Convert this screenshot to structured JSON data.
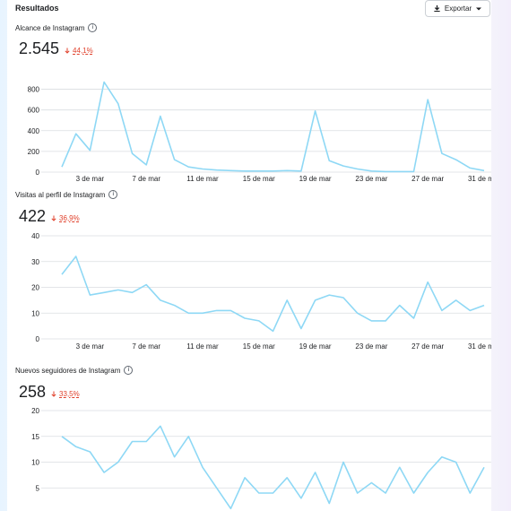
{
  "header": {
    "title": "Resultados",
    "export_label": "Exportar"
  },
  "colors": {
    "line": "#8ed8f5",
    "grid": "#dadde1",
    "decrease": "#e0402b"
  },
  "sections": [
    {
      "title": "Alcance de Instagram",
      "value": "2.545",
      "change": "44,1%"
    },
    {
      "title": "Visitas al perfil de Instagram",
      "value": "422",
      "change": "36,9%"
    },
    {
      "title": "Nuevos seguidores de Instagram",
      "value": "258",
      "change": "33,5%"
    }
  ],
  "chart_data": [
    {
      "type": "line",
      "x": [
        1,
        2,
        3,
        4,
        5,
        6,
        7,
        8,
        9,
        10,
        11,
        12,
        13,
        14,
        15,
        16,
        17,
        18,
        19,
        20,
        21,
        22,
        23,
        24,
        25,
        26,
        27,
        28,
        29,
        30,
        31
      ],
      "xticks": [
        "3 de mar",
        "7 de mar",
        "11 de mar",
        "15 de mar",
        "19 de mar",
        "23 de mar",
        "27 de mar",
        "31 de mar"
      ],
      "xtick_days": [
        3,
        7,
        11,
        15,
        19,
        23,
        27,
        31
      ],
      "yticks": [
        0,
        200,
        400,
        600,
        800
      ],
      "ylim": [
        0,
        900
      ],
      "values": [
        50,
        370,
        210,
        870,
        660,
        180,
        70,
        540,
        120,
        50,
        30,
        20,
        15,
        10,
        10,
        10,
        15,
        10,
        590,
        110,
        60,
        30,
        10,
        5,
        5,
        5,
        700,
        180,
        120,
        40,
        15
      ]
    },
    {
      "type": "line",
      "x": [
        1,
        2,
        3,
        4,
        5,
        6,
        7,
        8,
        9,
        10,
        11,
        12,
        13,
        14,
        15,
        16,
        17,
        18,
        19,
        20,
        21,
        22,
        23,
        24,
        25,
        26,
        27,
        28,
        29,
        30,
        31
      ],
      "xticks": [
        "3 de mar",
        "7 de mar",
        "11 de mar",
        "15 de mar",
        "19 de mar",
        "23 de mar",
        "27 de mar",
        "31 de mar"
      ],
      "xtick_days": [
        3,
        7,
        11,
        15,
        19,
        23,
        27,
        31
      ],
      "yticks": [
        0,
        10,
        20,
        30,
        40
      ],
      "ylim": [
        0,
        40
      ],
      "values": [
        25,
        32,
        17,
        18,
        19,
        18,
        21,
        15,
        13,
        10,
        10,
        11,
        11,
        8,
        7,
        3,
        15,
        4,
        15,
        17,
        16,
        10,
        7,
        7,
        13,
        8,
        22,
        11,
        15,
        11,
        13
      ]
    },
    {
      "type": "line",
      "x": [
        1,
        2,
        3,
        4,
        5,
        6,
        7,
        8,
        9,
        10,
        11,
        12,
        13,
        14,
        15,
        16,
        17,
        18,
        19,
        20,
        21,
        22,
        23,
        24,
        25,
        26,
        27,
        28,
        29,
        30,
        31
      ],
      "yticks": [
        5,
        10,
        15,
        20
      ],
      "ylim": [
        0,
        20
      ],
      "values": [
        15,
        13,
        12,
        8,
        10,
        14,
        14,
        17,
        11,
        15,
        9,
        5,
        1,
        7,
        4,
        4,
        7,
        3,
        8,
        2,
        10,
        4,
        6,
        4,
        9,
        4,
        8,
        11,
        10,
        4,
        9
      ]
    }
  ]
}
